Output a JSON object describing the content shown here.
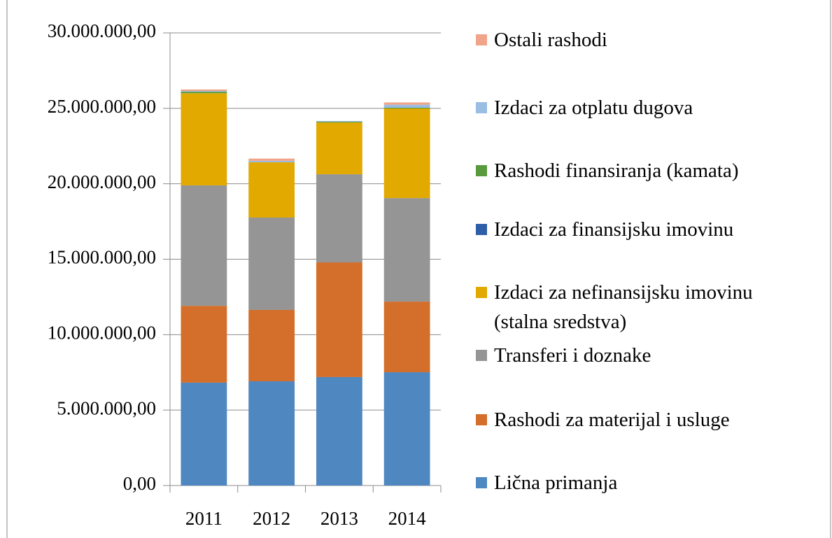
{
  "chart_data": {
    "type": "stacked_bar",
    "categories": [
      "2011",
      "2012",
      "2013",
      "2014"
    ],
    "series": [
      {
        "name": "Lična primanja",
        "color": "#4f87c0",
        "values": [
          6820000,
          6910000,
          7190000,
          7510000
        ]
      },
      {
        "name": "Rashodi za materijal i usluge",
        "color": "#d36e2b",
        "values": [
          5090000,
          4730000,
          7600000,
          4680000
        ]
      },
      {
        "name": "Transferi i doznake",
        "color": "#959595",
        "values": [
          7980000,
          6120000,
          5840000,
          6860000
        ]
      },
      {
        "name": "Izdaci za nefinansijsku imovinu (stalna sredstva)",
        "color": "#e2a900",
        "values": [
          6110000,
          3660000,
          3430000,
          5940000
        ]
      },
      {
        "name": "Izdaci za finansijsku imovinu",
        "color": "#2f5ea8",
        "values": [
          0,
          0,
          0,
          0
        ]
      },
      {
        "name": "Rashodi finansiranja (kamata)",
        "color": "#5a9a3e",
        "values": [
          100000,
          0,
          50000,
          50000
        ]
      },
      {
        "name": "Izdaci za otplatu dugova",
        "color": "#99bde3",
        "values": [
          50000,
          100000,
          50000,
          200000
        ]
      },
      {
        "name": "Ostali rashodi",
        "color": "#f0a58a",
        "values": [
          100000,
          150000,
          0,
          150000
        ]
      }
    ],
    "ylim": [
      0,
      30000000
    ],
    "yticks": [
      {
        "value": 0,
        "label": "0,00"
      },
      {
        "value": 5000000,
        "label": "5.000.000,00"
      },
      {
        "value": 10000000,
        "label": "10.000.000,00"
      },
      {
        "value": 15000000,
        "label": "15.000.000,00"
      },
      {
        "value": 20000000,
        "label": "20.000.000,00"
      },
      {
        "value": 25000000,
        "label": "25.000.000,00"
      },
      {
        "value": 30000000,
        "label": "30.000.000,00"
      }
    ],
    "grid": true,
    "legend": "right"
  }
}
